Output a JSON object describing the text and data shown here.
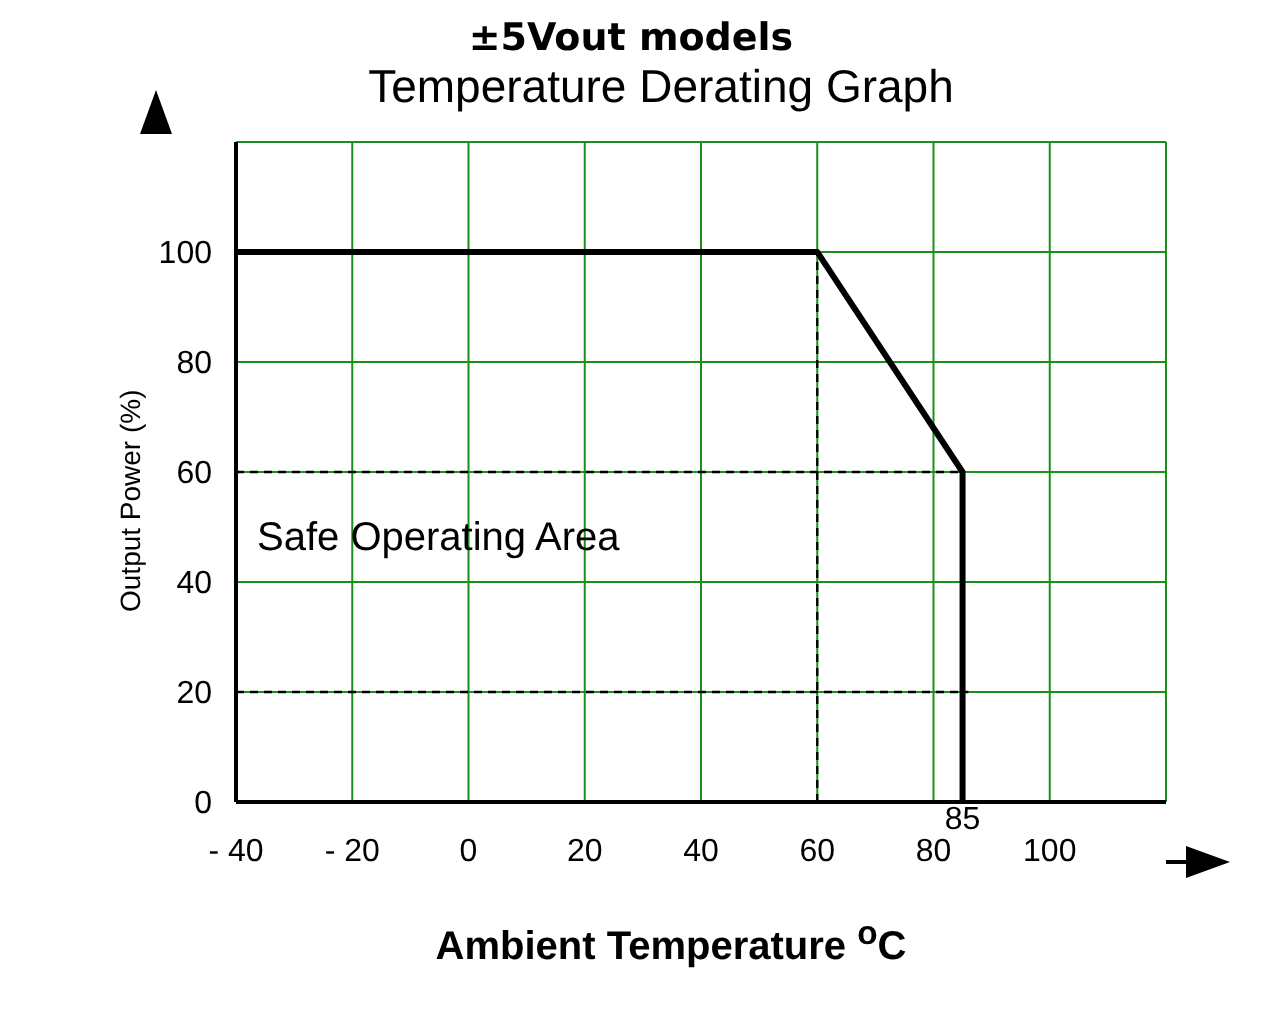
{
  "chart_data": {
    "type": "line",
    "title": "±5Vout models",
    "subtitle": "Temperature Derating Graph",
    "xlabel": "Ambient Temperature $^{o}$C",
    "ylabel": "Output Power (%)",
    "series": [
      {
        "color": "#000000",
        "x": [
          -40,
          60,
          85,
          85
        ],
        "values": [
          100,
          100,
          60,
          0
        ],
        "line_style": "solid"
      },
      {
        "type": "line",
        "color": "#000000",
        "x": [
          -40,
          85
        ],
        "values": [
          60,
          60
        ],
        "line_style": "dashed"
      },
      {
        "type": "line",
        "color": "#000000",
        "x": [
          -40,
          86
        ],
        "values": [
          20,
          20
        ],
        "line_style": "dashed"
      },
      {
        "type": "line",
        "color": "#000000",
        "x": [
          60,
          60
        ],
        "values": [
          0,
          100
        ],
        "line_style": "dashed"
      }
    ],
    "xlim": [
      -40,
      120
    ],
    "xticks": [
      {
        "value": -40,
        "label": "- 40"
      },
      {
        "value": -20,
        "label": "- 20"
      },
      0,
      20,
      40,
      60,
      80,
      100,
      {
        "value": 120,
        "label": null
      }
    ],
    "ylim": [
      0,
      120
    ],
    "yticks": [
      0,
      20,
      40,
      60,
      80,
      100,
      {
        "value": 120,
        "label": null
      }
    ],
    "grid": true,
    "marker": "none",
    "annotations": [
      "Safe Operating Area",
      {
        "text": "85",
        "x": 85,
        "y": 0
      }
    ]
  }
}
